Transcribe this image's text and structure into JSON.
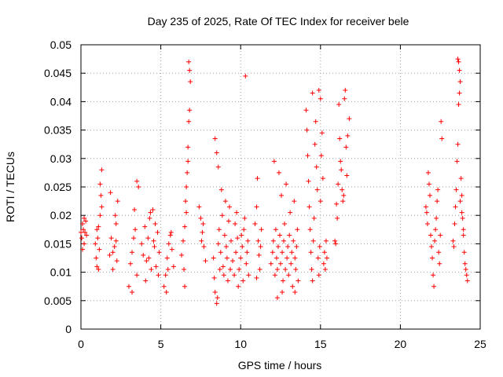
{
  "chart_data": {
    "type": "scatter",
    "title": "Day 235 of 2025, Rate Of TEC Index for receiver bele",
    "xlabel": "GPS time / hours",
    "ylabel": "ROTI / TECUs",
    "xlim": [
      0,
      25
    ],
    "ylim": [
      0,
      0.05
    ],
    "x_ticks": [
      0,
      5,
      10,
      15,
      20,
      25
    ],
    "x_tick_labels": [
      "0",
      "5",
      "10",
      "15",
      "20",
      "25"
    ],
    "y_ticks": [
      0,
      0.005,
      0.01,
      0.015,
      0.02,
      0.025,
      0.03,
      0.035,
      0.04,
      0.045,
      0.05
    ],
    "y_tick_labels": [
      "0",
      "0.005",
      "0.01",
      "0.015",
      "0.02",
      "0.025",
      "0.03",
      "0.035",
      "0.04",
      "0.045",
      "0.05"
    ],
    "grid": true,
    "marker": "+",
    "color": "#ff0000",
    "series": [
      {
        "name": "ROTI",
        "points": [
          [
            0.0,
            0.017
          ],
          [
            0.05,
            0.016
          ],
          [
            0.1,
            0.0185
          ],
          [
            0.15,
            0.0175
          ],
          [
            0.2,
            0.015
          ],
          [
            0.25,
            0.017
          ],
          [
            0.3,
            0.019
          ],
          [
            0.35,
            0.0165
          ],
          [
            0.1,
            0.014
          ],
          [
            0.2,
            0.0195
          ],
          [
            0.9,
            0.015
          ],
          [
            0.95,
            0.0125
          ],
          [
            1.0,
            0.011
          ],
          [
            1.05,
            0.016
          ],
          [
            1.1,
            0.018
          ],
          [
            1.15,
            0.014
          ],
          [
            1.2,
            0.02
          ],
          [
            1.25,
            0.0235
          ],
          [
            1.3,
            0.028
          ],
          [
            1.1,
            0.0105
          ],
          [
            1.2,
            0.0255
          ],
          [
            1.0,
            0.0175
          ],
          [
            1.3,
            0.0215
          ],
          [
            1.8,
            0.013
          ],
          [
            1.9,
            0.016
          ],
          [
            2.0,
            0.0105
          ],
          [
            2.1,
            0.0145
          ],
          [
            2.2,
            0.0185
          ],
          [
            2.25,
            0.012
          ],
          [
            2.3,
            0.0225
          ],
          [
            1.85,
            0.024
          ],
          [
            2.15,
            0.02
          ],
          [
            2.0,
            0.0135
          ],
          [
            2.2,
            0.0155
          ],
          [
            3.0,
            0.0075
          ],
          [
            3.1,
            0.0115
          ],
          [
            3.2,
            0.0135
          ],
          [
            3.3,
            0.016
          ],
          [
            3.4,
            0.0175
          ],
          [
            3.5,
            0.026
          ],
          [
            3.6,
            0.025
          ],
          [
            3.2,
            0.0065
          ],
          [
            3.35,
            0.021
          ],
          [
            3.5,
            0.0095
          ],
          [
            3.8,
            0.015
          ],
          [
            3.9,
            0.013
          ],
          [
            4.0,
            0.018
          ],
          [
            4.1,
            0.012
          ],
          [
            4.2,
            0.016
          ],
          [
            4.3,
            0.0195
          ],
          [
            4.4,
            0.0105
          ],
          [
            4.5,
            0.021
          ],
          [
            4.6,
            0.0145
          ],
          [
            4.7,
            0.011
          ],
          [
            4.8,
            0.017
          ],
          [
            4.9,
            0.0135
          ],
          [
            4.05,
            0.0085
          ],
          [
            4.35,
            0.0205
          ],
          [
            4.65,
            0.0185
          ],
          [
            4.85,
            0.0095
          ],
          [
            4.25,
            0.0125
          ],
          [
            4.55,
            0.0155
          ],
          [
            5.2,
            0.0075
          ],
          [
            5.3,
            0.0095
          ],
          [
            5.4,
            0.0125
          ],
          [
            5.5,
            0.015
          ],
          [
            5.6,
            0.0165
          ],
          [
            5.7,
            0.014
          ],
          [
            5.8,
            0.011
          ],
          [
            5.35,
            0.0065
          ],
          [
            5.65,
            0.017
          ],
          [
            5.45,
            0.0105
          ],
          [
            6.3,
            0.013
          ],
          [
            6.4,
            0.0155
          ],
          [
            6.5,
            0.018
          ],
          [
            6.55,
            0.0225
          ],
          [
            6.6,
            0.025
          ],
          [
            6.65,
            0.0275
          ],
          [
            6.7,
            0.032
          ],
          [
            6.75,
            0.0365
          ],
          [
            6.8,
            0.0385
          ],
          [
            6.85,
            0.0435
          ],
          [
            6.8,
            0.0455
          ],
          [
            6.75,
            0.047
          ],
          [
            6.45,
            0.0105
          ],
          [
            6.5,
            0.0075
          ],
          [
            6.6,
            0.0205
          ],
          [
            6.7,
            0.0295
          ],
          [
            7.4,
            0.0215
          ],
          [
            7.5,
            0.0195
          ],
          [
            7.6,
            0.017
          ],
          [
            7.7,
            0.0145
          ],
          [
            7.8,
            0.012
          ],
          [
            7.55,
            0.0155
          ],
          [
            7.65,
            0.0185
          ],
          [
            8.4,
            0.0335
          ],
          [
            8.5,
            0.031
          ],
          [
            8.6,
            0.0285
          ],
          [
            8.3,
            0.0125
          ],
          [
            8.35,
            0.009
          ],
          [
            8.4,
            0.0065
          ],
          [
            8.5,
            0.0045
          ],
          [
            8.55,
            0.0055
          ],
          [
            8.6,
            0.015
          ],
          [
            8.65,
            0.0175
          ],
          [
            8.7,
            0.0105
          ],
          [
            8.75,
            0.0135
          ],
          [
            8.8,
            0.0245
          ],
          [
            8.85,
            0.02
          ],
          [
            8.9,
            0.011
          ],
          [
            8.95,
            0.0095
          ],
          [
            9.0,
            0.0165
          ],
          [
            9.05,
            0.0225
          ],
          [
            9.1,
            0.0145
          ],
          [
            9.15,
            0.0125
          ],
          [
            9.2,
            0.0085
          ],
          [
            9.25,
            0.019
          ],
          [
            9.3,
            0.0215
          ],
          [
            9.35,
            0.0105
          ],
          [
            9.4,
            0.0155
          ],
          [
            9.5,
            0.012
          ],
          [
            9.6,
            0.0095
          ],
          [
            9.7,
            0.0135
          ],
          [
            9.8,
            0.016
          ],
          [
            9.9,
            0.0105
          ],
          [
            10.0,
            0.0125
          ],
          [
            10.1,
            0.0145
          ],
          [
            10.2,
            0.0175
          ],
          [
            10.3,
            0.0445
          ],
          [
            10.35,
            0.0115
          ],
          [
            10.4,
            0.0135
          ],
          [
            10.5,
            0.0095
          ],
          [
            9.65,
            0.0185
          ],
          [
            9.75,
            0.0205
          ],
          [
            9.85,
            0.0075
          ],
          [
            10.05,
            0.0165
          ],
          [
            10.15,
            0.0085
          ],
          [
            10.25,
            0.0195
          ],
          [
            10.45,
            0.0155
          ],
          [
            10.9,
            0.0185
          ],
          [
            11.0,
            0.0215
          ],
          [
            11.05,
            0.0265
          ],
          [
            11.1,
            0.0155
          ],
          [
            11.15,
            0.013
          ],
          [
            11.2,
            0.0105
          ],
          [
            11.25,
            0.0145
          ],
          [
            11.3,
            0.0175
          ],
          [
            11.0,
            0.009
          ],
          [
            11.9,
            0.0115
          ],
          [
            12.0,
            0.0135
          ],
          [
            12.05,
            0.0155
          ],
          [
            12.1,
            0.0295
          ],
          [
            12.15,
            0.0095
          ],
          [
            12.2,
            0.0175
          ],
          [
            12.25,
            0.0125
          ],
          [
            12.3,
            0.0105
          ],
          [
            12.35,
            0.0145
          ],
          [
            12.4,
            0.0275
          ],
          [
            12.45,
            0.0165
          ],
          [
            12.5,
            0.0115
          ],
          [
            12.55,
            0.0235
          ],
          [
            12.6,
            0.0135
          ],
          [
            12.65,
            0.0085
          ],
          [
            12.7,
            0.0155
          ],
          [
            12.75,
            0.0185
          ],
          [
            12.8,
            0.0105
          ],
          [
            12.85,
            0.0255
          ],
          [
            12.9,
            0.0125
          ],
          [
            12.95,
            0.0145
          ],
          [
            13.0,
            0.0095
          ],
          [
            13.05,
            0.0165
          ],
          [
            13.1,
            0.0205
          ],
          [
            13.15,
            0.0115
          ],
          [
            13.2,
            0.0135
          ],
          [
            13.25,
            0.0075
          ],
          [
            13.3,
            0.0155
          ],
          [
            13.35,
            0.0225
          ],
          [
            13.4,
            0.0125
          ],
          [
            13.45,
            0.0105
          ],
          [
            13.5,
            0.0145
          ],
          [
            13.55,
            0.0175
          ],
          [
            13.6,
            0.0085
          ],
          [
            12.3,
            0.0055
          ],
          [
            12.6,
            0.0065
          ],
          [
            13.4,
            0.0065
          ],
          [
            14.1,
            0.0385
          ],
          [
            14.15,
            0.035
          ],
          [
            14.2,
            0.0305
          ],
          [
            14.25,
            0.026
          ],
          [
            14.3,
            0.0215
          ],
          [
            14.35,
            0.0175
          ],
          [
            14.4,
            0.0135
          ],
          [
            14.45,
            0.0105
          ],
          [
            14.5,
            0.0085
          ],
          [
            14.55,
            0.0155
          ],
          [
            14.6,
            0.0195
          ],
          [
            14.65,
            0.0325
          ],
          [
            14.7,
            0.0365
          ],
          [
            14.75,
            0.0285
          ],
          [
            14.8,
            0.0245
          ],
          [
            14.85,
            0.0125
          ],
          [
            14.9,
            0.0095
          ],
          [
            14.95,
            0.0145
          ],
          [
            15.0,
            0.0225
          ],
          [
            15.05,
            0.0305
          ],
          [
            15.1,
            0.0345
          ],
          [
            15.15,
            0.0265
          ],
          [
            15.2,
            0.0115
          ],
          [
            15.25,
            0.0135
          ],
          [
            15.3,
            0.0105
          ],
          [
            15.35,
            0.0155
          ],
          [
            15.4,
            0.0125
          ],
          [
            14.5,
            0.0415
          ],
          [
            14.9,
            0.042
          ],
          [
            15.0,
            0.0405
          ],
          [
            15.9,
            0.0155
          ],
          [
            16.0,
            0.022
          ],
          [
            16.05,
            0.0195
          ],
          [
            16.1,
            0.0255
          ],
          [
            16.15,
            0.0395
          ],
          [
            16.2,
            0.0335
          ],
          [
            16.25,
            0.0295
          ],
          [
            16.3,
            0.028
          ],
          [
            16.35,
            0.0245
          ],
          [
            16.4,
            0.0225
          ],
          [
            16.45,
            0.0235
          ],
          [
            16.5,
            0.0405
          ],
          [
            16.55,
            0.042
          ],
          [
            16.6,
            0.032
          ],
          [
            16.65,
            0.027
          ],
          [
            16.7,
            0.034
          ],
          [
            16.8,
            0.037
          ],
          [
            15.95,
            0.015
          ],
          [
            21.6,
            0.0215
          ],
          [
            21.65,
            0.0205
          ],
          [
            21.7,
            0.0185
          ],
          [
            21.75,
            0.0275
          ],
          [
            21.8,
            0.0255
          ],
          [
            21.85,
            0.0235
          ],
          [
            21.9,
            0.0165
          ],
          [
            21.95,
            0.0145
          ],
          [
            22.0,
            0.0125
          ],
          [
            22.05,
            0.0095
          ],
          [
            22.1,
            0.0075
          ],
          [
            22.15,
            0.0155
          ],
          [
            22.2,
            0.0175
          ],
          [
            22.25,
            0.0195
          ],
          [
            22.3,
            0.0225
          ],
          [
            22.35,
            0.0245
          ],
          [
            22.4,
            0.0135
          ],
          [
            22.45,
            0.0115
          ],
          [
            22.5,
            0.0165
          ],
          [
            22.55,
            0.0365
          ],
          [
            22.6,
            0.0335
          ],
          [
            23.3,
            0.0155
          ],
          [
            23.35,
            0.0145
          ],
          [
            23.4,
            0.0185
          ],
          [
            23.45,
            0.0215
          ],
          [
            23.5,
            0.0245
          ],
          [
            23.55,
            0.0295
          ],
          [
            23.6,
            0.0325
          ],
          [
            23.65,
            0.0395
          ],
          [
            23.7,
            0.0415
          ],
          [
            23.75,
            0.0435
          ],
          [
            23.7,
            0.0455
          ],
          [
            23.65,
            0.047
          ],
          [
            23.6,
            0.0475
          ],
          [
            23.8,
            0.0265
          ],
          [
            23.85,
            0.0235
          ],
          [
            23.9,
            0.0195
          ],
          [
            23.95,
            0.0175
          ],
          [
            24.0,
            0.0135
          ],
          [
            24.05,
            0.0115
          ],
          [
            24.1,
            0.0105
          ],
          [
            24.15,
            0.0095
          ],
          [
            24.2,
            0.0085
          ],
          [
            23.75,
            0.0225
          ],
          [
            23.85,
            0.0205
          ],
          [
            23.95,
            0.0165
          ]
        ]
      }
    ]
  }
}
